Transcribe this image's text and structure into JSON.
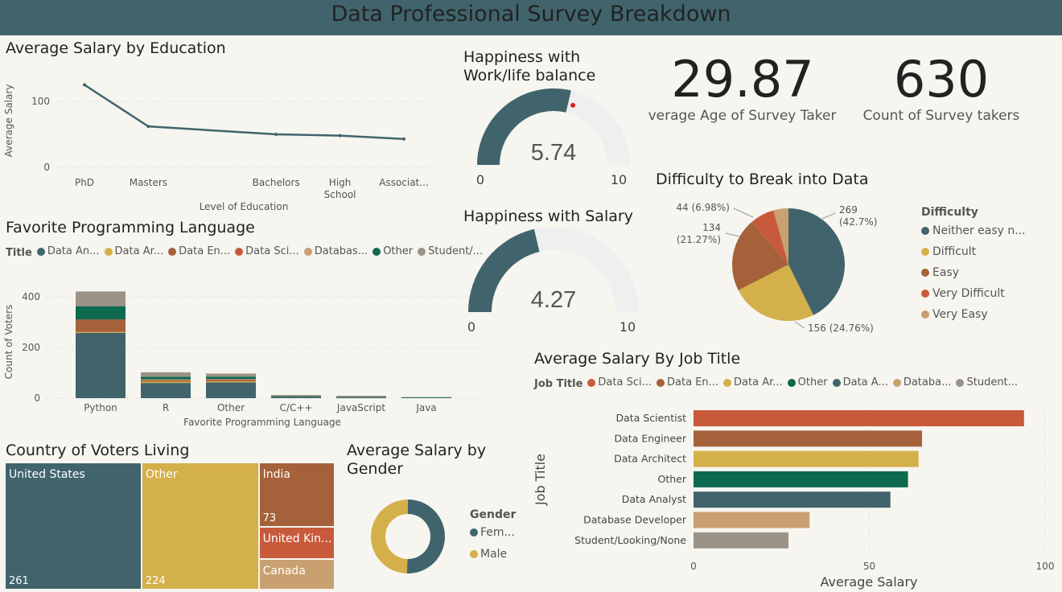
{
  "header": {
    "title": "Data Professional Survey Breakdown"
  },
  "colors": {
    "slate": "#41646c",
    "mustard": "#d4b04a",
    "brown": "#a5623a",
    "rust": "#c85a3c",
    "tan": "#c9a070",
    "green": "#0e6a4e",
    "gray": "#9b9288"
  },
  "edu": {
    "title": "Average Salary by Education"
  },
  "lang": {
    "title": "Favorite Programming Language"
  },
  "work_life": {
    "title_line1": "Happiness with",
    "title_line2": "Work/life balance"
  },
  "salary_happy": {
    "title": "Happiness with Salary"
  },
  "kpi_age": {
    "value": "29.87",
    "label": "verage Age of Survey Taker"
  },
  "kpi_count": {
    "value": "630",
    "label": "Count of Survey takers"
  },
  "difficulty": {
    "title": "Difficulty to Break into Data"
  },
  "country": {
    "title": "Country of Voters Living"
  },
  "gender": {
    "title_line1": "Average Salary by",
    "title_line2": "Gender"
  },
  "jobsal": {
    "title": "Average Salary By Job Title"
  },
  "chart_data": [
    {
      "type": "line",
      "title": "Average Salary by Education",
      "xlabel": "Level of Education",
      "ylabel": "Average Salary",
      "categories": [
        "PhD",
        "Masters",
        "Bachelors",
        "High School",
        "Associat..."
      ],
      "category_labels": [
        [
          "PhD"
        ],
        [
          "Masters"
        ],
        [
          "Bachelors"
        ],
        [
          "High",
          "School"
        ],
        [
          "Associat..."
        ]
      ],
      "category_positions": [
        0,
        1,
        3,
        4,
        5
      ],
      "values": [
        125,
        62,
        50,
        48,
        43
      ],
      "yticks": [
        0,
        100
      ],
      "ylim": [
        0,
        140
      ],
      "color": "#41646c"
    },
    {
      "type": "bar",
      "title": "Favorite Programming Language",
      "xlabel": "Favorite Programming Language",
      "ylabel": "Count of Voters",
      "legend_title": "Title",
      "categories": [
        "Python",
        "R",
        "Other",
        "C/C++",
        "JavaScript",
        "Java"
      ],
      "series": [
        {
          "name": "Data An...",
          "color": "#41646c",
          "values": [
            258,
            60,
            62,
            8,
            5,
            3
          ]
        },
        {
          "name": "Data Ar...",
          "color": "#d4b04a",
          "values": [
            3,
            5,
            4,
            1,
            1,
            0
          ]
        },
        {
          "name": "Data En...",
          "color": "#a5623a",
          "values": [
            50,
            5,
            5,
            1,
            1,
            0
          ]
        },
        {
          "name": "Data Sci...",
          "color": "#c85a3c",
          "values": [
            0,
            2,
            2,
            0,
            0,
            0
          ]
        },
        {
          "name": "Databas...",
          "color": "#c9a070",
          "values": [
            0,
            2,
            2,
            0,
            0,
            0
          ]
        },
        {
          "name": "Other",
          "color": "#0e6a4e",
          "values": [
            52,
            10,
            10,
            1,
            1,
            1
          ]
        },
        {
          "name": "Student/...",
          "color": "#9b9288",
          "values": [
            58,
            18,
            12,
            1,
            1,
            0
          ]
        }
      ],
      "yticks": [
        0,
        200,
        400
      ],
      "ylim": [
        0,
        450
      ]
    },
    {
      "type": "gauge",
      "title": "Happiness with Work/life balance",
      "value": 5.74,
      "min": 0,
      "max": 10,
      "target": 6.0,
      "value_label": "5.74",
      "min_label": "0",
      "max_label": "10",
      "color": "#41646c",
      "target_color": "#e02020"
    },
    {
      "type": "gauge",
      "title": "Happiness with Salary",
      "value": 4.27,
      "min": 0,
      "max": 10,
      "value_label": "4.27",
      "min_label": "0",
      "max_label": "10",
      "color": "#41646c"
    },
    {
      "type": "pie",
      "title": "Difficulty to Break into Data",
      "legend_title": "Difficulty",
      "slices": [
        {
          "name": "Neither easy n...",
          "value": 269,
          "label": "269 (42.7%)",
          "color": "#41646c"
        },
        {
          "name": "Difficult",
          "value": 156,
          "label": "156 (24.76%)",
          "color": "#d4b04a"
        },
        {
          "name": "Easy",
          "value": 134,
          "label": "134 (21.27%)",
          "color": "#a5623a"
        },
        {
          "name": "Very Difficult",
          "value": 44,
          "label": "44 (6.98%)",
          "color": "#c85a3c"
        },
        {
          "name": "Very Easy",
          "value": 27,
          "label": "",
          "color": "#c9a070"
        }
      ]
    },
    {
      "type": "treemap",
      "title": "Country of Voters Living",
      "items": [
        {
          "name": "United States",
          "value": 261,
          "value_label": "261",
          "color": "#41646c"
        },
        {
          "name": "Other",
          "value": 224,
          "value_label": "224",
          "color": "#d4b04a"
        },
        {
          "name": "India",
          "value": 73,
          "value_label": "73",
          "color": "#a5623a"
        },
        {
          "name": "United Kin...",
          "value": 37,
          "value_label": "",
          "color": "#c85a3c"
        },
        {
          "name": "Canada",
          "value": 35,
          "value_label": "",
          "color": "#c9a070"
        }
      ]
    },
    {
      "type": "pie",
      "title": "Average Salary by Gender",
      "legend_title": "Gender",
      "donut": true,
      "slices": [
        {
          "name": "Fem...",
          "value": 64,
          "color": "#41646c"
        },
        {
          "name": "Male",
          "value": 63,
          "color": "#d4b04a"
        }
      ]
    },
    {
      "type": "bar",
      "orientation": "horizontal",
      "title": "Average Salary By Job Title",
      "xlabel": "Average Salary",
      "ylabel": "Job Title",
      "legend_title": "Job Title",
      "legend_entries": [
        {
          "name": "Data Sci...",
          "color": "#c85a3c"
        },
        {
          "name": "Data En...",
          "color": "#a5623a"
        },
        {
          "name": "Data Ar...",
          "color": "#d4b04a"
        },
        {
          "name": "Other",
          "color": "#0e6a4e"
        },
        {
          "name": "Data A...",
          "color": "#41646c"
        },
        {
          "name": "Databa...",
          "color": "#c9a070"
        },
        {
          "name": "Student...",
          "color": "#9b9288"
        }
      ],
      "categories": [
        "Data Scientist",
        "Data Engineer",
        "Data Architect",
        "Other",
        "Data Analyst",
        "Database Developer",
        "Student/Looking/None"
      ],
      "values": [
        94,
        65,
        64,
        61,
        56,
        33,
        27
      ],
      "colors": [
        "#c85a3c",
        "#a5623a",
        "#d4b04a",
        "#0e6a4e",
        "#41646c",
        "#c9a070",
        "#9b9288"
      ],
      "xticks": [
        0,
        50,
        100
      ],
      "xlim": [
        0,
        100
      ]
    }
  ]
}
